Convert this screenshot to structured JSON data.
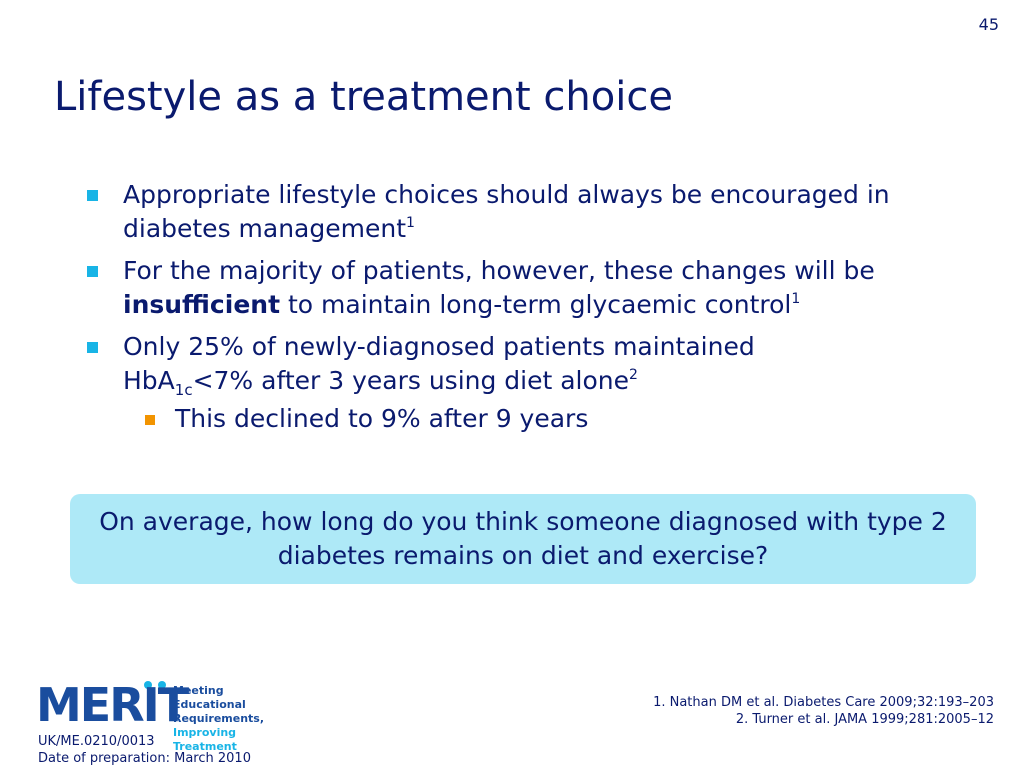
{
  "slide": {
    "page_number": "45",
    "title": "Lifestyle as a treatment choice"
  },
  "bullets": [
    {
      "text": "Appropriate lifestyle choices should always be encouraged in diabetes management",
      "sup": "1"
    },
    {
      "text_before": "For the majority of patients, however, these changes will be ",
      "bold": "insufficient",
      "text_after": " to maintain long-term glycaemic control",
      "sup": "1"
    },
    {
      "line1": "Only 25% of newly-diagnosed patients maintained",
      "hba": "HbA",
      "hba_sub": "1c",
      "rest": "<7% after 3 years using diet alone",
      "sup": "2",
      "sub_bullet": "This declined to 9% after 9 years"
    }
  ],
  "callout": {
    "text": "On average, how long do you think someone diagnosed with type 2 diabetes remains on diet and exercise?"
  },
  "logo": {
    "wordmark": "MERIT",
    "tagline_1": "Meeting Educational",
    "tagline_2": "Requirements,",
    "tagline_3": "Improving Treatment",
    "primary_color": "#1a4d9e",
    "accent_color": "#18b4e6"
  },
  "footer": {
    "doc_code": "UK/ME.0210/0013",
    "date_of_preparation": "Date of preparation: March 2010",
    "reference_1": "1. Nathan DM et al. Diabetes Care 2009;32:193–203",
    "reference_2": "2. Turner et al. JAMA 1999;281:2005–12"
  }
}
